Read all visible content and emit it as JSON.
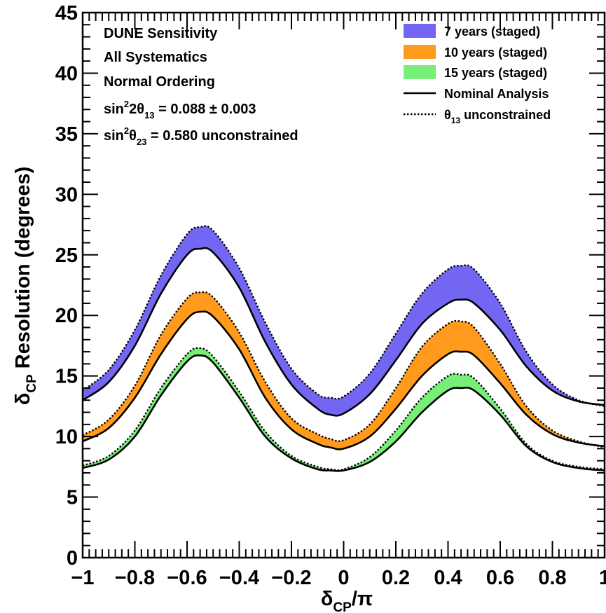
{
  "chart_data": {
    "type": "area",
    "xlabel": {
      "main": "δ",
      "sub": "CP",
      "rest": "/π"
    },
    "ylabel": {
      "main": "δ",
      "sub": "CP",
      "rest": " Resolution (degrees)"
    },
    "xlim": [
      -1,
      1
    ],
    "ylim": [
      0,
      45
    ],
    "xticks": [
      -1,
      -0.8,
      -0.6,
      -0.4,
      -0.2,
      0,
      0.2,
      0.4,
      0.6,
      0.8,
      1
    ],
    "xtick_labels": [
      "−1",
      "−0.8",
      "−0.6",
      "−0.4",
      "−0.2",
      "0",
      "0.2",
      "0.4",
      "0.6",
      "0.8",
      "1"
    ],
    "yticks": [
      0,
      5,
      10,
      15,
      20,
      25,
      30,
      35,
      40,
      45
    ],
    "ytick_labels": [
      "0",
      "5",
      "10",
      "15",
      "20",
      "25",
      "30",
      "35",
      "40",
      "45"
    ],
    "info_lines": [
      {
        "text": "DUNE Sensitivity"
      },
      {
        "text": "All Systematics"
      },
      {
        "text": "Normal Ordering"
      },
      {
        "pre": "sin",
        "sup": "2",
        "mid": "2θ",
        "sub": "13",
        "post": " = 0.088 ± 0.003"
      },
      {
        "pre": "sin",
        "sup": "2",
        "mid": "θ",
        "sub": "23",
        "post": " = 0.580 unconstrained"
      }
    ],
    "legend": {
      "placement": "top-right",
      "entries": [
        {
          "kind": "fill",
          "color": "#7366f2",
          "label": "7 years (staged)"
        },
        {
          "kind": "fill",
          "color": "#ff9a1c",
          "label": "10 years (staged)"
        },
        {
          "kind": "fill",
          "color": "#77ee77",
          "label": "15 years (staged)"
        },
        {
          "kind": "solid",
          "label": "Nominal Analysis"
        },
        {
          "kind": "dotted",
          "label_pre": "θ",
          "label_sub": "13",
          "label_post": " unconstrained"
        }
      ]
    },
    "x": [
      -1,
      -0.9,
      -0.8,
      -0.7,
      -0.6,
      -0.55,
      -0.5,
      -0.4,
      -0.3,
      -0.2,
      -0.1,
      -0.05,
      0,
      0.1,
      0.2,
      0.3,
      0.4,
      0.45,
      0.5,
      0.6,
      0.7,
      0.8,
      0.9,
      1
    ],
    "series": [
      {
        "name": "7 years (staged)",
        "color": "#7366f2",
        "nominal": [
          13.0,
          14.5,
          17.5,
          21.8,
          25.0,
          25.5,
          25.2,
          22.3,
          17.8,
          14.3,
          12.3,
          11.8,
          11.9,
          13.5,
          16.3,
          19.3,
          21.0,
          21.3,
          21.0,
          18.8,
          15.8,
          13.8,
          12.9,
          12.6
        ],
        "unconstrained": [
          13.8,
          15.5,
          18.8,
          23.3,
          26.7,
          27.3,
          27.0,
          23.9,
          19.4,
          15.6,
          13.5,
          13.2,
          13.3,
          15.2,
          18.5,
          21.8,
          23.8,
          24.1,
          23.8,
          21.0,
          17.0,
          14.3,
          13.0,
          12.5
        ]
      },
      {
        "name": "10 years (staged)",
        "color": "#ff9a1c",
        "nominal": [
          9.6,
          10.7,
          13.2,
          16.8,
          19.7,
          20.3,
          19.9,
          17.2,
          13.2,
          10.6,
          9.4,
          9.1,
          9.0,
          10.0,
          12.3,
          15.0,
          16.8,
          17.0,
          16.7,
          14.4,
          11.8,
          10.2,
          9.5,
          9.2
        ],
        "unconstrained": [
          10.1,
          11.4,
          14.2,
          18.4,
          21.4,
          21.9,
          21.5,
          18.6,
          14.5,
          11.5,
          10.2,
          9.8,
          9.7,
          11.0,
          14.0,
          17.4,
          19.3,
          19.5,
          19.0,
          16.0,
          12.5,
          10.5,
          9.6,
          9.1
        ]
      },
      {
        "name": "15 years (staged)",
        "color": "#77ee77",
        "nominal": [
          7.4,
          8.1,
          10.0,
          13.4,
          16.2,
          16.7,
          16.1,
          13.2,
          10.0,
          8.2,
          7.3,
          7.2,
          7.2,
          7.9,
          9.6,
          12.0,
          13.8,
          14.0,
          13.8,
          11.8,
          9.2,
          7.9,
          7.4,
          7.2
        ],
        "unconstrained": [
          7.6,
          8.4,
          10.5,
          14.0,
          16.8,
          17.3,
          16.6,
          13.7,
          10.4,
          8.4,
          7.5,
          7.3,
          7.3,
          8.3,
          10.5,
          13.2,
          15.0,
          15.1,
          14.8,
          12.3,
          9.4,
          8.0,
          7.5,
          7.3
        ]
      }
    ]
  }
}
